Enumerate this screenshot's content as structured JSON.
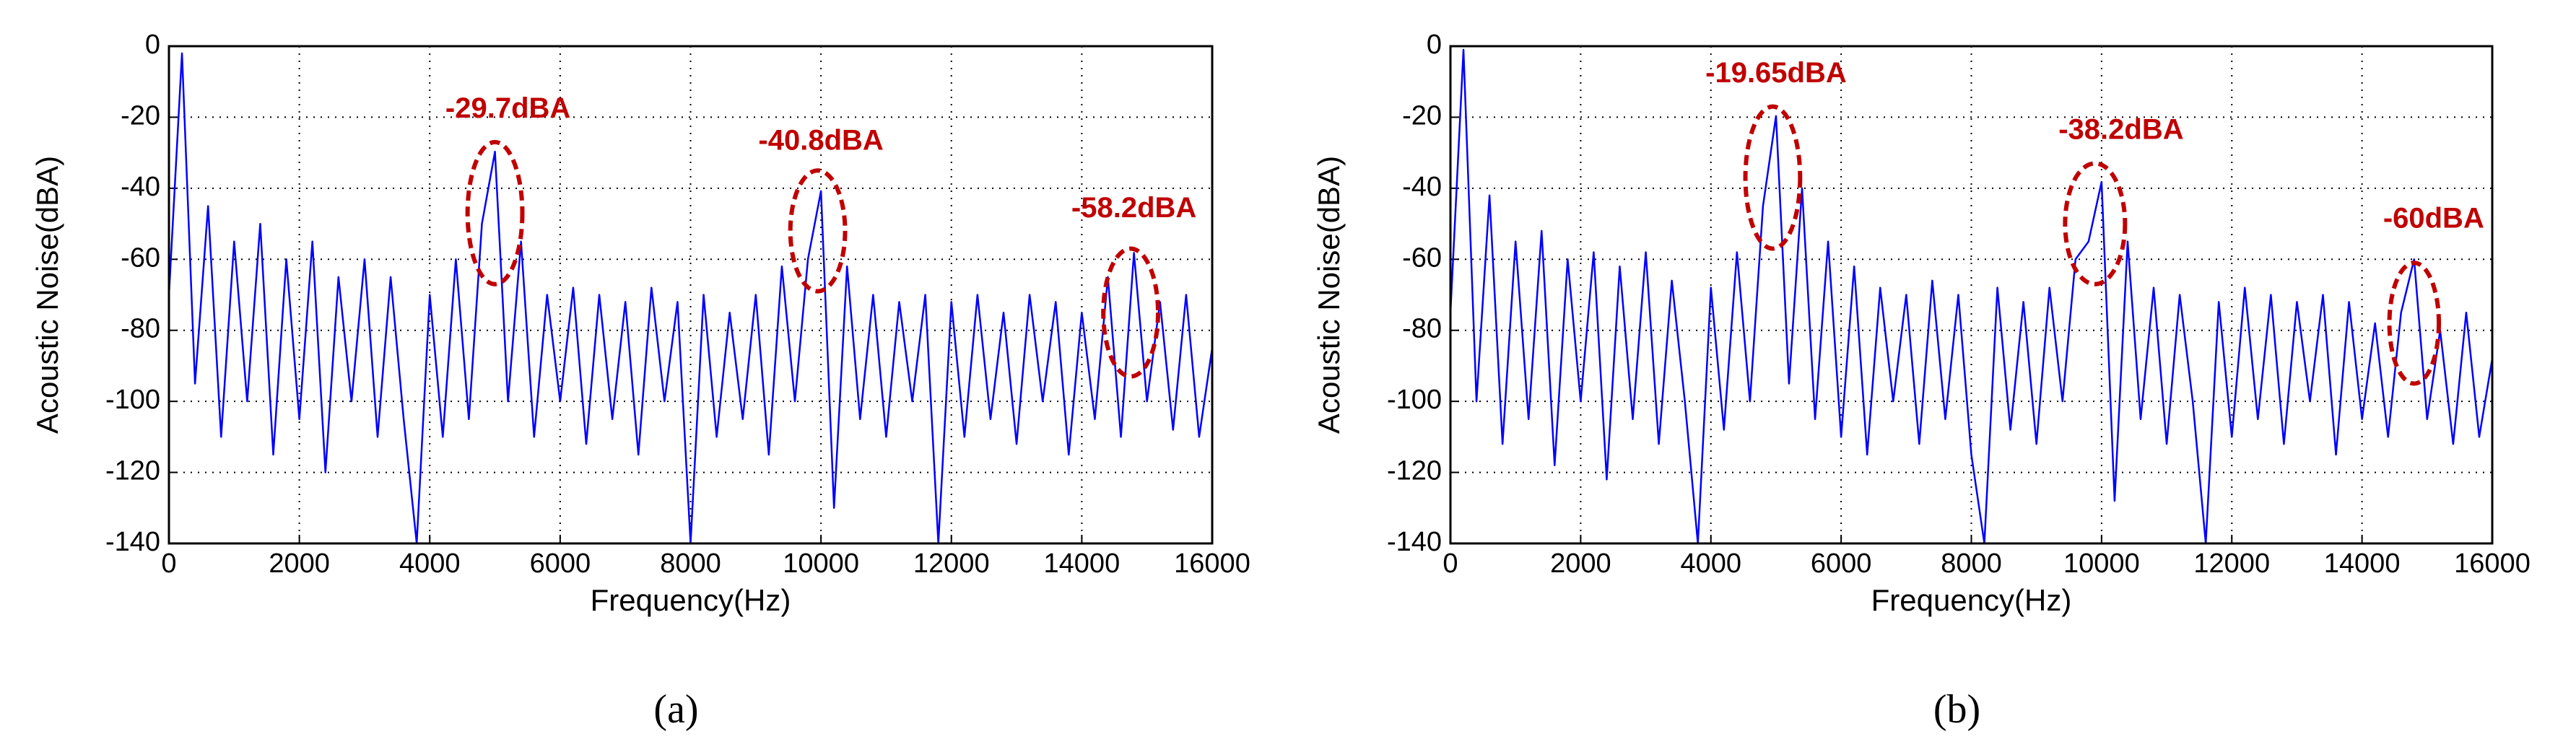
{
  "chart_data": [
    {
      "type": "line",
      "caption": "(a)",
      "xlabel": "Frequency(Hz)",
      "ylabel": "Acoustic Noise(dBA)",
      "xlim": [
        0,
        16000
      ],
      "ylim": [
        -140,
        0
      ],
      "grid": true,
      "xticks": [
        0,
        2000,
        4000,
        6000,
        8000,
        10000,
        12000,
        14000,
        16000
      ],
      "yticks": [
        -140,
        -120,
        -100,
        -80,
        -60,
        -40,
        -20,
        0
      ],
      "annotations": [
        "-29.7dBA",
        "-40.8dBA",
        "-58.2dBA"
      ],
      "annotation_color": "#c00000",
      "x": [
        0,
        200,
        400,
        600,
        800,
        1000,
        1200,
        1400,
        1600,
        1800,
        2000,
        2200,
        2400,
        2600,
        2800,
        3000,
        3200,
        3400,
        3600,
        3800,
        4000,
        4200,
        4400,
        4600,
        4800,
        5000,
        5200,
        5400,
        5600,
        5800,
        6000,
        6200,
        6400,
        6600,
        6800,
        7000,
        7200,
        7400,
        7600,
        7800,
        8000,
        8200,
        8400,
        8600,
        8800,
        9000,
        9200,
        9400,
        9600,
        9800,
        10000,
        10200,
        10400,
        10600,
        10800,
        11000,
        11200,
        11400,
        11600,
        11800,
        12000,
        12200,
        12400,
        12600,
        12800,
        13000,
        13200,
        13400,
        13600,
        13800,
        14000,
        14200,
        14400,
        14600,
        14800,
        15000,
        15200,
        15400,
        15600,
        15800,
        16000
      ],
      "series": [
        {
          "color": "#0000ff",
          "values": [
            -70,
            -2,
            -95,
            -45,
            -110,
            -55,
            -100,
            -50,
            -115,
            -60,
            -105,
            -55,
            -120,
            -65,
            -100,
            -60,
            -110,
            -65,
            -105,
            -140,
            -70,
            -110,
            -60,
            -105,
            -50,
            -29.7,
            -100,
            -55,
            -110,
            -70,
            -100,
            -68,
            -112,
            -70,
            -105,
            -72,
            -115,
            -68,
            -100,
            -72,
            -140,
            -70,
            -110,
            -75,
            -105,
            -70,
            -115,
            -62,
            -100,
            -60,
            -40.8,
            -130,
            -62,
            -105,
            -70,
            -110,
            -72,
            -100,
            -70,
            -140,
            -72,
            -110,
            -70,
            -105,
            -75,
            -112,
            -70,
            -100,
            -72,
            -115,
            -75,
            -105,
            -65,
            -110,
            -58.2,
            -100,
            -72,
            -108,
            -70,
            -110,
            -85
          ]
        }
      ]
    },
    {
      "type": "line",
      "caption": "(b)",
      "xlabel": "Frequency(Hz)",
      "ylabel": "Acoustic Noise(dBA)",
      "xlim": [
        0,
        16000
      ],
      "ylim": [
        -140,
        0
      ],
      "grid": true,
      "xticks": [
        0,
        2000,
        4000,
        6000,
        8000,
        10000,
        12000,
        14000,
        16000
      ],
      "yticks": [
        -140,
        -120,
        -100,
        -80,
        -60,
        -40,
        -20,
        0
      ],
      "annotations": [
        "-19.65dBA",
        "-38.2dBA",
        "-60dBA"
      ],
      "annotation_color": "#c00000",
      "x": [
        0,
        200,
        400,
        600,
        800,
        1000,
        1200,
        1400,
        1600,
        1800,
        2000,
        2200,
        2400,
        2600,
        2800,
        3000,
        3200,
        3400,
        3600,
        3800,
        4000,
        4200,
        4400,
        4600,
        4800,
        5000,
        5200,
        5400,
        5600,
        5800,
        6000,
        6200,
        6400,
        6600,
        6800,
        7000,
        7200,
        7400,
        7600,
        7800,
        8000,
        8200,
        8400,
        8600,
        8800,
        9000,
        9200,
        9400,
        9600,
        9800,
        10000,
        10200,
        10400,
        10600,
        10800,
        11000,
        11200,
        11400,
        11600,
        11800,
        12000,
        12200,
        12400,
        12600,
        12800,
        13000,
        13200,
        13400,
        13600,
        13800,
        14000,
        14200,
        14400,
        14600,
        14800,
        15000,
        15200,
        15400,
        15600,
        15800,
        16000
      ],
      "series": [
        {
          "color": "#0000ff",
          "values": [
            -75,
            -1,
            -100,
            -42,
            -112,
            -55,
            -105,
            -52,
            -118,
            -60,
            -100,
            -58,
            -122,
            -62,
            -105,
            -58,
            -112,
            -66,
            -100,
            -140,
            -68,
            -108,
            -58,
            -100,
            -45,
            -19.65,
            -95,
            -40,
            -105,
            -55,
            -110,
            -62,
            -115,
            -68,
            -100,
            -70,
            -112,
            -66,
            -105,
            -70,
            -115,
            -140,
            -68,
            -108,
            -72,
            -112,
            -68,
            -100,
            -60,
            -55,
            -38.2,
            -128,
            -55,
            -105,
            -68,
            -112,
            -70,
            -100,
            -140,
            -72,
            -110,
            -68,
            -105,
            -70,
            -112,
            -72,
            -100,
            -70,
            -115,
            -72,
            -105,
            -78,
            -110,
            -75,
            -60,
            -105,
            -80,
            -112,
            -75,
            -110,
            -88
          ]
        }
      ]
    }
  ]
}
